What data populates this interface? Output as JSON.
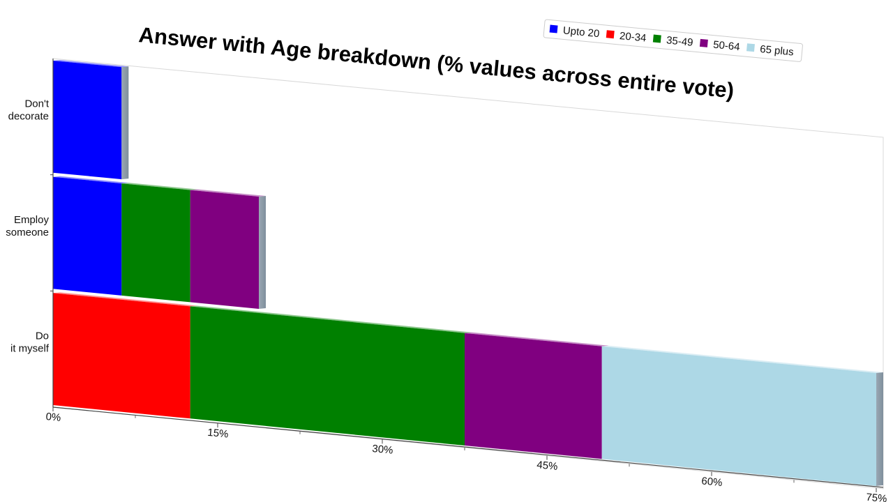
{
  "chart_data": {
    "type": "bar",
    "orientation": "horizontal",
    "stacked": true,
    "title": "Answer with Age breakdown (% values across entire vote)",
    "xlabel": "",
    "ylabel": "",
    "xlim": [
      0,
      75
    ],
    "x_ticks": [
      "0%",
      "15%",
      "30%",
      "45%",
      "60%",
      "75%"
    ],
    "categories": [
      "Don't decorate",
      "Employ someone",
      "Do it myself"
    ],
    "series": [
      {
        "name": "Upto 20",
        "color": "#0000ff",
        "values": [
          6.25,
          6.25,
          0
        ]
      },
      {
        "name": "20-34",
        "color": "#ff0000",
        "values": [
          0,
          0,
          12.5
        ]
      },
      {
        "name": "35-49",
        "color": "#008000",
        "values": [
          0,
          6.25,
          25
        ]
      },
      {
        "name": "50-64",
        "color": "#800080",
        "values": [
          0,
          6.25,
          12.5
        ]
      },
      {
        "name": "65 plus",
        "color": "#add8e6",
        "values": [
          0,
          0,
          25
        ]
      }
    ],
    "legend_position": "top-right",
    "grid": false
  }
}
